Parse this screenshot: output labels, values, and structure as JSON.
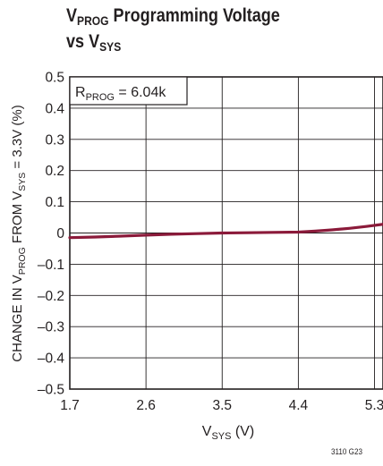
{
  "title": {
    "line1_main": "V",
    "line1_sub": "PROG",
    "line1_rest": " Programming Voltage",
    "line2_main": "vs V",
    "line2_sub": "SYS"
  },
  "figure_number": "3110 G23",
  "chart_data": {
    "type": "line",
    "xlabel": {
      "main": "V",
      "sub": "SYS",
      "rest": " (V)"
    },
    "ylabel": {
      "p1": "CHANGE IN V",
      "sub1": "PROG",
      "p2": " FROM V",
      "sub2": "SYS",
      "p3": " = 3.3V (%)"
    },
    "xlim": [
      1.7,
      5.4
    ],
    "ylim": [
      -0.5,
      0.5
    ],
    "xticks": [
      1.7,
      2.6,
      3.5,
      4.4,
      5.3
    ],
    "xtick_labels": [
      "1.7",
      "2.6",
      "3.5",
      "4.4",
      "5.3"
    ],
    "yticks": [
      0.5,
      0.4,
      0.3,
      0.2,
      0.1,
      0,
      -0.1,
      -0.2,
      -0.3,
      -0.4,
      -0.5
    ],
    "ytick_labels": [
      "0.5",
      "0.4",
      "0.3",
      "0.2",
      "0.1",
      "0",
      "–0.1",
      "–0.2",
      "–0.3",
      "–0.4",
      "–0.5"
    ],
    "grid": true,
    "annotation": {
      "main": "R",
      "sub": "PROG",
      "rest": " = 6.04k"
    },
    "line_color": "#8b1a3a",
    "series": [
      {
        "x": [
          1.7,
          2.0,
          2.3,
          2.6,
          2.9,
          3.2,
          3.5,
          3.8,
          4.1,
          4.4,
          4.6,
          4.8,
          5.0,
          5.2,
          5.4
        ],
        "y": [
          -0.015,
          -0.013,
          -0.01,
          -0.007,
          -0.004,
          -0.002,
          0.0,
          0.001,
          0.002,
          0.003,
          0.006,
          0.01,
          0.015,
          0.021,
          0.028
        ]
      }
    ]
  }
}
